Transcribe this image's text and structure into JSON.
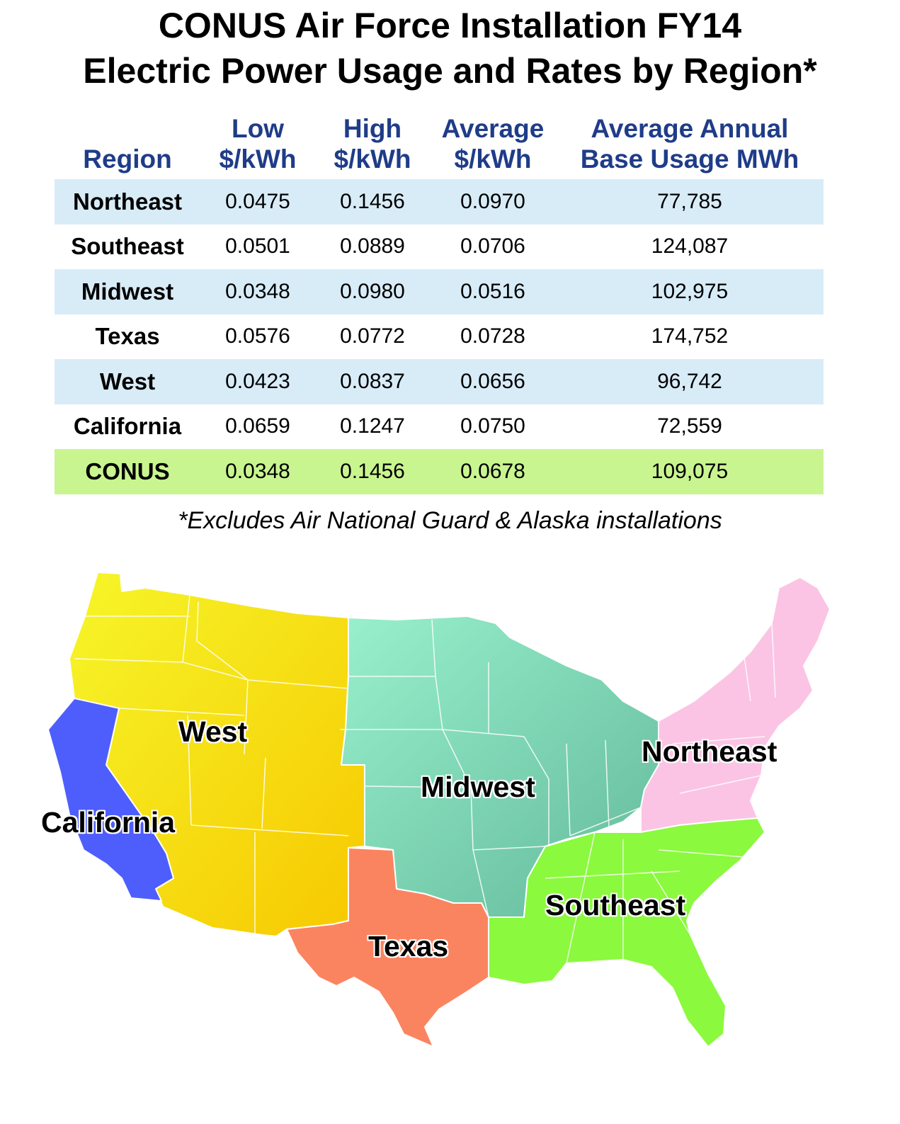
{
  "title": {
    "line1": "CONUS Air Force Installation FY14",
    "line2": "Electric Power Usage and Rates by Region*"
  },
  "table": {
    "headers": [
      {
        "line1": "",
        "line2": "Region"
      },
      {
        "line1": "Low",
        "line2": "$/kWh"
      },
      {
        "line1": "High",
        "line2": "$/kWh"
      },
      {
        "line1": "Average",
        "line2": "$/kWh"
      },
      {
        "line1": "Average Annual",
        "line2": "Base Usage MWh"
      }
    ],
    "rows": [
      {
        "region": "Northeast",
        "low": "0.0475",
        "high": "0.1456",
        "avg": "0.0970",
        "usage": "77,785"
      },
      {
        "region": "Southeast",
        "low": "0.0501",
        "high": "0.0889",
        "avg": "0.0706",
        "usage": "124,087"
      },
      {
        "region": "Midwest",
        "low": "0.0348",
        "high": "0.0980",
        "avg": "0.0516",
        "usage": "102,975"
      },
      {
        "region": "Texas",
        "low": "0.0576",
        "high": "0.0772",
        "avg": "0.0728",
        "usage": "174,752"
      },
      {
        "region": "West",
        "low": "0.0423",
        "high": "0.0837",
        "avg": "0.0656",
        "usage": "96,742"
      },
      {
        "region": "California",
        "low": "0.0659",
        "high": "0.1247",
        "avg": "0.0750",
        "usage": "72,559"
      },
      {
        "region": "CONUS",
        "low": "0.0348",
        "high": "0.1456",
        "avg": "0.0678",
        "usage": "109,075"
      }
    ],
    "colors": {
      "header_text": "#1f3c88",
      "shade_row": "#d8ecf8",
      "total_row": "#c9f590"
    }
  },
  "footnote": "*Excludes Air National Guard & Alaska installations",
  "map": {
    "region_labels": {
      "west": "West",
      "california": "California",
      "midwest": "Midwest",
      "northeast": "Northeast",
      "southeast": "Southeast",
      "texas": "Texas"
    },
    "region_colors": {
      "west": "#f2e000",
      "california": "#4e5efc",
      "midwest": "#7ed8b4",
      "northeast": "#fbc4e4",
      "southeast": "#8bf93e",
      "texas": "#fb8460"
    }
  }
}
